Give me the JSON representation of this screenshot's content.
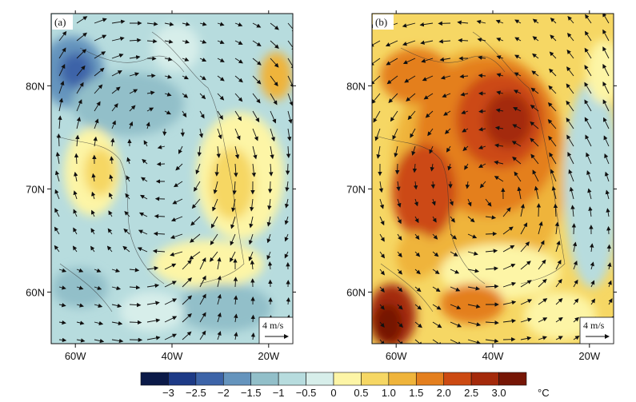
{
  "figure": {
    "panels": [
      {
        "tag": "(a)",
        "lat_ticks": [
          "80N",
          "70N",
          "60N"
        ],
        "lon_ticks": [
          "60W",
          "40W",
          "20W"
        ],
        "ref_vector_label": "4 m/s",
        "tone": "cold"
      },
      {
        "tag": "(b)",
        "lat_ticks": [
          "80N",
          "70N",
          "60N"
        ],
        "lon_ticks": [
          "60W",
          "40W",
          "20W"
        ],
        "ref_vector_label": "4 m/s",
        "tone": "warm"
      }
    ],
    "colorbar": {
      "labels": [
        "−3",
        "−2.5",
        "−2",
        "−1.5",
        "−1",
        "−0.5",
        "0",
        "0.5",
        "1.0",
        "1.5",
        "2.0",
        "2.5",
        "3.0"
      ],
      "unit": "°C",
      "colors": [
        "#0b1a48",
        "#1d3a86",
        "#3d64a8",
        "#6594bd",
        "#92bfc9",
        "#b7dcde",
        "#d7eeea",
        "#fdf5a6",
        "#f6d764",
        "#efb43b",
        "#e47f1e",
        "#cc4a12",
        "#a42a0b",
        "#761606"
      ]
    }
  },
  "chart_data": [
    {
      "type": "heatmap",
      "panel": "(a)",
      "x_axis": {
        "ticks": [
          "60W",
          "40W",
          "20W"
        ],
        "range_deg": [
          -65,
          -15
        ]
      },
      "y_axis": {
        "ticks": [
          "60N",
          "70N",
          "80N"
        ],
        "range_deg": [
          55,
          87
        ]
      },
      "field_summary": "mostly weak negative anomalies (-1 to 0) with a cold core near 62W 81N (about -2.5) and positive patches (0.5 to 1.5) near 30W 70N and 50W 73N",
      "vector_reference_ms": 4
    },
    {
      "type": "heatmap",
      "panel": "(b)",
      "x_axis": {
        "ticks": [
          "60W",
          "40W",
          "20W"
        ],
        "range_deg": [
          -65,
          -15
        ]
      },
      "y_axis": {
        "ticks": [
          "60N",
          "70N",
          "80N"
        ],
        "range_deg": [
          55,
          87
        ]
      },
      "field_summary": "broad warm anomalies; maximum near 38W 76N (about 3.0), warm core near 62W 57N, cooler band near 20W",
      "vector_reference_ms": 4
    }
  ]
}
